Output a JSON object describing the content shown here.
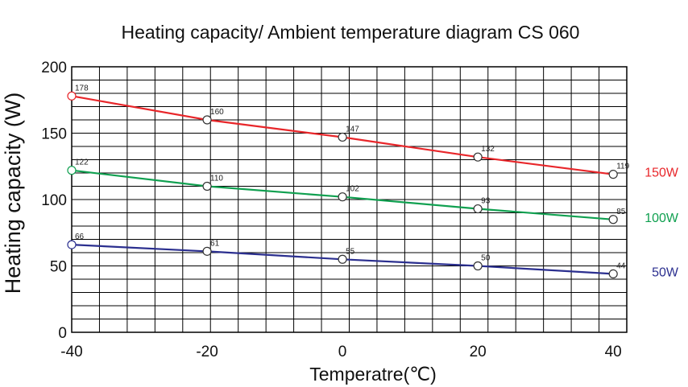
{
  "chart_data": {
    "type": "line",
    "title": "Heating capacity/ Ambient temperature diagram CS 060",
    "xlabel": "Temperatre(℃)",
    "ylabel": "Heating capacity (W)",
    "xlim": [
      -40,
      42
    ],
    "ylim": [
      0,
      200
    ],
    "x_ticks": [
      "-40",
      "-20",
      "0",
      "20",
      "40"
    ],
    "y_ticks": [
      "0",
      "50",
      "100",
      "150",
      "200"
    ],
    "grid": true,
    "x": [
      -40,
      -20,
      0,
      20,
      40
    ],
    "series": [
      {
        "name": "150W",
        "color": "#e8262a",
        "values": [
          178,
          160,
          147,
          132,
          119
        ]
      },
      {
        "name": "100W",
        "color": "#10a050",
        "values": [
          122,
          110,
          102,
          93,
          85
        ]
      },
      {
        "name": "50W",
        "color": "#2b2f8f",
        "values": [
          66,
          61,
          55,
          50,
          44
        ]
      }
    ]
  }
}
